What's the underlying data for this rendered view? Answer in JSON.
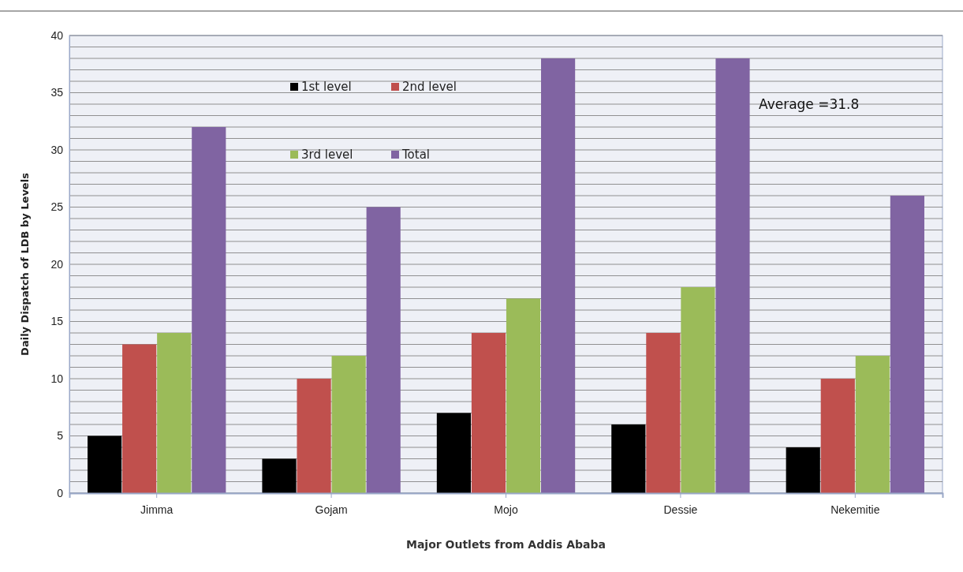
{
  "chart_data": {
    "type": "bar",
    "xlabel": "Major Outlets from Addis Ababa",
    "ylabel": "Daily Dispatch of LDB by Levels",
    "categories": [
      "Jimma",
      "Gojam",
      "Mojo",
      "Dessie",
      "Nekemitie"
    ],
    "series": [
      {
        "name": "1st level",
        "color": "#000000",
        "values": [
          5,
          3,
          7,
          6,
          4
        ]
      },
      {
        "name": "2nd level",
        "color": "#c0504d",
        "values": [
          13,
          10,
          14,
          14,
          10
        ]
      },
      {
        "name": "3rd level",
        "color": "#9bbb59",
        "values": [
          14,
          12,
          17,
          18,
          12
        ]
      },
      {
        "name": "Total",
        "color": "#8064a2",
        "values": [
          32,
          25,
          38,
          38,
          26
        ]
      }
    ],
    "ylim": [
      0,
      40
    ],
    "yticks": [
      0,
      {
        "value": 1,
        "label": null
      },
      {
        "value": 2,
        "label": null
      },
      {
        "value": 3,
        "label": null
      },
      {
        "value": 4,
        "label": null
      },
      5,
      {
        "value": 6,
        "label": null
      },
      {
        "value": 7,
        "label": null
      },
      {
        "value": 8,
        "label": null
      },
      {
        "value": 9,
        "label": null
      },
      10,
      {
        "value": 11,
        "label": null
      },
      {
        "value": 12,
        "label": null
      },
      {
        "value": 13,
        "label": null
      },
      {
        "value": 14,
        "label": null
      },
      15,
      {
        "value": 16,
        "label": null
      },
      {
        "value": 17,
        "label": null
      },
      {
        "value": 18,
        "label": null
      },
      {
        "value": 19,
        "label": null
      },
      20,
      {
        "value": 21,
        "label": null
      },
      {
        "value": 22,
        "label": null
      },
      {
        "value": 23,
        "label": null
      },
      {
        "value": 24,
        "label": null
      },
      25,
      {
        "value": 26,
        "label": null
      },
      {
        "value": 27,
        "label": null
      },
      {
        "value": 28,
        "label": null
      },
      {
        "value": 29,
        "label": null
      },
      30,
      {
        "value": 31,
        "label": null
      },
      {
        "value": 32,
        "label": null
      },
      {
        "value": 33,
        "label": null
      },
      {
        "value": 34,
        "label": null
      },
      35,
      {
        "value": 36,
        "label": null
      },
      {
        "value": 37,
        "label": null
      },
      {
        "value": 38,
        "label": null
      },
      {
        "value": 39,
        "label": null
      },
      40
    ],
    "grid": "y",
    "legend": "top",
    "annotations": [
      "Average =31.8"
    ]
  }
}
